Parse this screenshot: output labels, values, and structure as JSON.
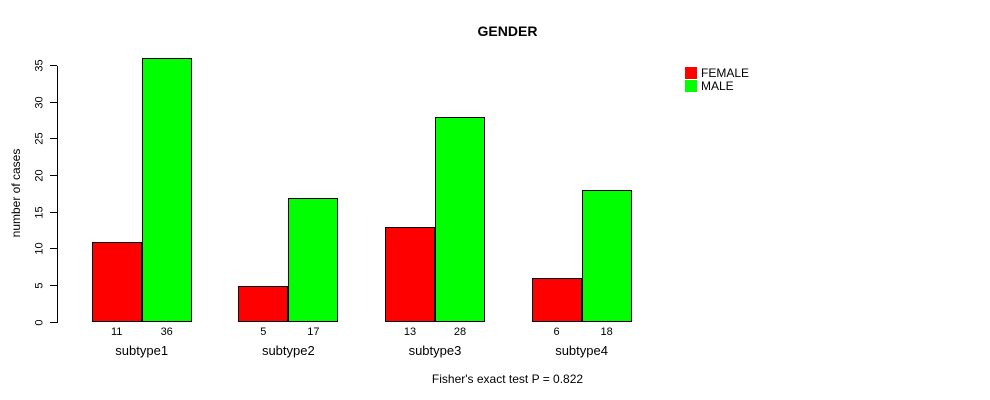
{
  "chart_data": {
    "type": "bar",
    "title": "GENDER",
    "ylabel": "number of cases",
    "xlabel": "",
    "caption": "Fisher's exact test P = 0.822",
    "categories": [
      "subtype1",
      "subtype2",
      "subtype3",
      "subtype4"
    ],
    "series": [
      {
        "name": "FEMALE",
        "color": "#ff0000",
        "values": [
          11,
          5,
          13,
          6
        ]
      },
      {
        "name": "MALE",
        "color": "#00ff00",
        "values": [
          36,
          17,
          28,
          18
        ]
      }
    ],
    "yticks": [
      0,
      5,
      10,
      15,
      20,
      25,
      30,
      35
    ],
    "ylim": [
      0,
      36
    ],
    "bar_value_labels": [
      [
        11,
        5,
        13,
        6
      ],
      [
        36,
        17,
        28,
        18
      ]
    ],
    "legend_position": "top-right",
    "grid": false,
    "bar_border_color": "#000000",
    "background_color": "#ffffff"
  }
}
